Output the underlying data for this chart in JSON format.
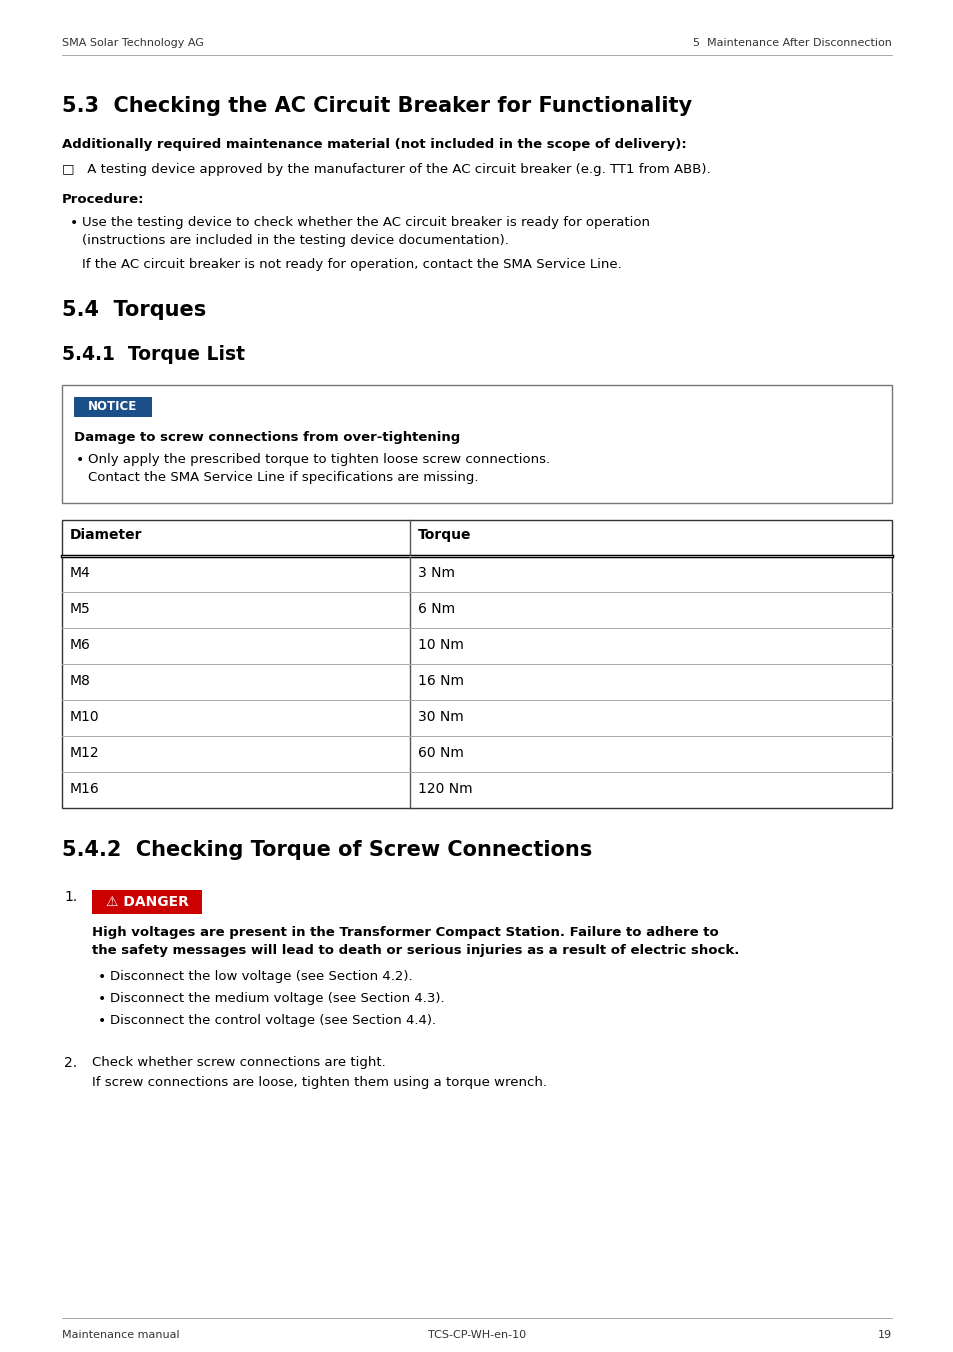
{
  "page_header_left": "SMA Solar Technology AG",
  "page_header_right": "5  Maintenance After Disconnection",
  "section_33_title": "5.3  Checking the AC Circuit Breaker for Functionality",
  "section_33_bold1": "Additionally required maintenance material (not included in the scope of delivery):",
  "section_33_checkbox": "□   A testing device approved by the manufacturer of the AC circuit breaker (e.g. TT1 from ABB).",
  "section_33_proc_label": "Procedure:",
  "section_33_bullet1_line1": "Use the testing device to check whether the AC circuit breaker is ready for operation",
  "section_33_bullet1_line2": "(instructions are included in the testing device documentation).",
  "section_33_if_line": "If the AC circuit breaker is not ready for operation, contact the SMA Service Line.",
  "section_34_title": "5.4  Torques",
  "section_341_title": "5.4.1  Torque List",
  "notice_label": "NOTICE",
  "notice_bg": "#1b4f8a",
  "notice_title": "Damage to screw connections from over-tightening",
  "notice_bullet1_line1": "Only apply the prescribed torque to tighten loose screw connections.",
  "notice_bullet1_line2": "Contact the SMA Service Line if specifications are missing.",
  "notice_border_color": "#777777",
  "table_header_col1": "Diameter",
  "table_header_col2": "Torque",
  "table_rows": [
    [
      "M4",
      "3 Nm"
    ],
    [
      "M5",
      "6 Nm"
    ],
    [
      "M6",
      "10 Nm"
    ],
    [
      "M8",
      "16 Nm"
    ],
    [
      "M10",
      "30 Nm"
    ],
    [
      "M12",
      "60 Nm"
    ],
    [
      "M16",
      "120 Nm"
    ]
  ],
  "section_342_title": "5.4.2  Checking Torque of Screw Connections",
  "danger_label": "⚠ DANGER",
  "danger_bg": "#cc0000",
  "danger_bold1": "High voltages are present in the Transformer Compact Station. Failure to adhere to",
  "danger_bold2": "the safety messages will lead to death or serious injuries as a result of electric shock.",
  "danger_bullet1": "Disconnect the low voltage (see Section 4.2).",
  "danger_bullet2": "Disconnect the medium voltage (see Section 4.3).",
  "danger_bullet3": "Disconnect the control voltage (see Section 4.4).",
  "step2_line1": "Check whether screw connections are tight.",
  "step2_line2": "If screw connections are loose, tighten them using a torque wrench.",
  "page_footer_left": "Maintenance manual",
  "page_footer_center": "TCS-CP-WH-en-10",
  "page_number": "19",
  "bg_color": "#ffffff",
  "text_color": "#000000"
}
